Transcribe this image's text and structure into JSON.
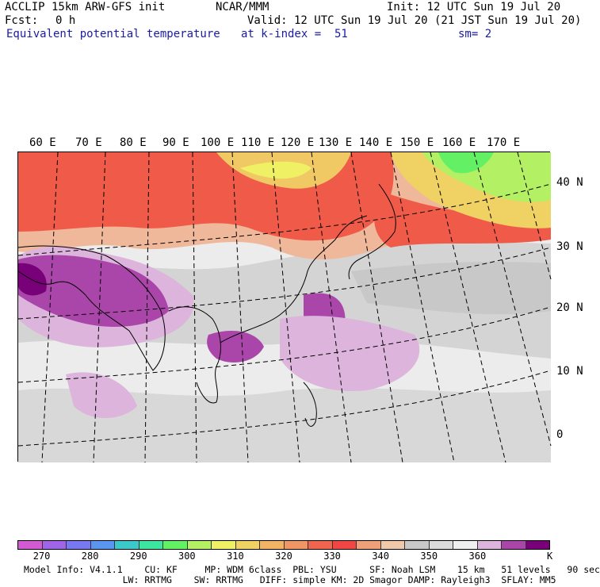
{
  "header": {
    "model_title": "ACCLIP 15km ARW-GFS init",
    "center": "NCAR/MMM",
    "init": "Init: 12 UTC Sun 19 Jul 20",
    "fcst_label": "Fcst:",
    "fcst_value": "0 h",
    "valid": "Valid: 12 UTC Sun 19 Jul 20 (21 JST Sun 19 Jul 20)",
    "field_name": "Equivalent potential temperature",
    "level": "at k-index =  51",
    "smoothing": "sm= 2"
  },
  "map": {
    "lon_labels": [
      "60 E",
      "70 E",
      "80 E",
      "90 E",
      "100 E",
      "110 E",
      "120 E",
      "130 E",
      "140 E",
      "150 E",
      "160 E",
      "170 E"
    ],
    "lat_labels": [
      "40 N",
      "30 N",
      "20 N",
      "10 N",
      "0"
    ]
  },
  "colorbar": {
    "labels": [
      "270",
      "280",
      "290",
      "300",
      "310",
      "320",
      "330",
      "340",
      "350",
      "360"
    ],
    "unit": "K",
    "colors": [
      "#d25ad2",
      "#a064e6",
      "#7878f0",
      "#5a96f0",
      "#3cc8c8",
      "#3ce6a0",
      "#64f064",
      "#b4f064",
      "#f0f064",
      "#f0d264",
      "#f0b464",
      "#f09664",
      "#f06450",
      "#f04646",
      "#f0a078",
      "#f0c8aa",
      "#c8c8c8",
      "#dcdcdc",
      "#f0f0f0",
      "#dcb4dc",
      "#aa46aa",
      "#780078"
    ]
  },
  "footer": {
    "line1": "Model Info: V4.1.1    CU: KF     MP: WDM 6class  PBL: YSU      SF: Noah LSM    15 km   51 levels   90 sec",
    "line2": "                  LW: RRTMG    SW: RRTMG   DIFF: simple KM: 2D Smagor DAMP: Rayleigh3  SFLAY: MM5"
  }
}
